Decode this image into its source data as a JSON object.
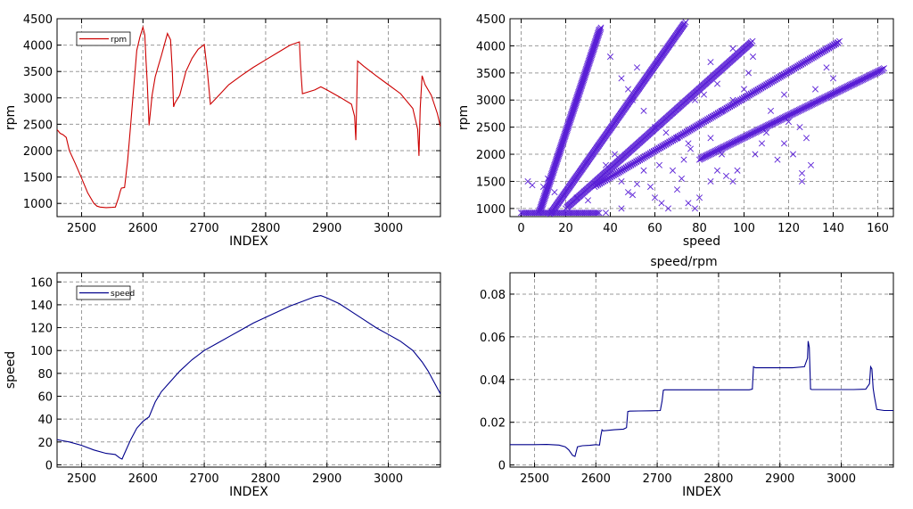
{
  "chart_data": [
    {
      "id": "rpm_index",
      "type": "line",
      "title": "",
      "xlabel": "INDEX",
      "ylabel": "rpm",
      "xlim": [
        2460,
        3085
      ],
      "ylim": [
        750,
        4500
      ],
      "xticks": [
        2500,
        2600,
        2700,
        2800,
        2900,
        3000
      ],
      "yticks": [
        1000,
        1500,
        2000,
        2500,
        3000,
        3500,
        4000,
        4500
      ],
      "grid": true,
      "legend": "top-left",
      "series": [
        {
          "name": "rpm",
          "color": "#cc0000",
          "x": [
            2460,
            2465,
            2470,
            2475,
            2480,
            2490,
            2500,
            2510,
            2520,
            2525,
            2530,
            2540,
            2550,
            2555,
            2560,
            2563,
            2565,
            2570,
            2575,
            2580,
            2585,
            2590,
            2595,
            2600,
            2603,
            2605,
            2607,
            2610,
            2615,
            2620,
            2625,
            2630,
            2640,
            2645,
            2648,
            2650,
            2652,
            2660,
            2670,
            2680,
            2690,
            2700,
            2705,
            2710,
            2720,
            2740,
            2760,
            2780,
            2800,
            2820,
            2840,
            2855,
            2857,
            2860,
            2880,
            2890,
            2900,
            2920,
            2940,
            2945,
            2947,
            2950,
            2960,
            2980,
            3000,
            3020,
            3040,
            3048,
            3050,
            3052,
            3055,
            3060,
            3070,
            3080,
            3085
          ],
          "values": [
            2400,
            2330,
            2300,
            2250,
            2000,
            1750,
            1480,
            1200,
            1000,
            950,
            930,
            920,
            925,
            930,
            1100,
            1230,
            1290,
            1300,
            1800,
            2500,
            3200,
            3900,
            4150,
            4340,
            4200,
            3700,
            3300,
            2480,
            3050,
            3400,
            3600,
            3800,
            4220,
            4100,
            3500,
            2830,
            2900,
            3050,
            3500,
            3750,
            3920,
            4010,
            3500,
            2880,
            3000,
            3250,
            3420,
            3580,
            3720,
            3860,
            4000,
            4060,
            3600,
            3080,
            3150,
            3210,
            3150,
            3020,
            2880,
            2650,
            2200,
            3700,
            3600,
            3420,
            3250,
            3080,
            2800,
            2400,
            1900,
            2800,
            3420,
            3250,
            3050,
            2700,
            2450
          ]
        }
      ]
    },
    {
      "id": "rpm_speed",
      "type": "scatter",
      "title": "",
      "xlabel": "speed",
      "ylabel": "rpm",
      "xlim": [
        -5,
        167
      ],
      "ylim": [
        850,
        4500
      ],
      "xticks": [
        0,
        20,
        40,
        60,
        80,
        100,
        120,
        140,
        160
      ],
      "yticks": [
        1000,
        1500,
        2000,
        2500,
        3000,
        3500,
        4000,
        4500
      ],
      "grid": true,
      "marker": "x",
      "series": [
        {
          "color": "#5a1fd6",
          "gear_lines": [
            {
              "x": [
                8,
                35
              ],
              "y": [
                930,
                4300
              ]
            },
            {
              "x": [
                13,
                73
              ],
              "y": [
                900,
                4400
              ]
            },
            {
              "x": [
                20,
                103
              ],
              "y": [
                1000,
                4050
              ]
            },
            {
              "x": [
                33,
                142
              ],
              "y": [
                1400,
                4050
              ]
            },
            {
              "x": [
                80,
                162
              ],
              "y": [
                1900,
                3550
              ]
            }
          ],
          "floor": {
            "x": [
              0,
              35
            ],
            "y": 920
          },
          "scattered_points": [
            [
              5,
              1430
            ],
            [
              10,
              1400
            ],
            [
              12,
              1550
            ],
            [
              3,
              1500
            ],
            [
              15,
              1300
            ],
            [
              25,
              1200
            ],
            [
              30,
              1150
            ],
            [
              38,
              1800
            ],
            [
              42,
              2000
            ],
            [
              45,
              1500
            ],
            [
              48,
              1300
            ],
            [
              50,
              1250
            ],
            [
              52,
              1450
            ],
            [
              55,
              1700
            ],
            [
              58,
              1400
            ],
            [
              60,
              1200
            ],
            [
              63,
              1100
            ],
            [
              66,
              1000
            ],
            [
              70,
              1350
            ],
            [
              72,
              1550
            ],
            [
              75,
              1100
            ],
            [
              78,
              1000
            ],
            [
              80,
              1200
            ],
            [
              85,
              1500
            ],
            [
              88,
              1700
            ],
            [
              92,
              1600
            ],
            [
              95,
              1500
            ],
            [
              60,
              2500
            ],
            [
              65,
              2400
            ],
            [
              70,
              2300
            ],
            [
              75,
              2200
            ],
            [
              55,
              2800
            ],
            [
              50,
              3000
            ],
            [
              45,
              3400
            ],
            [
              40,
              3800
            ],
            [
              52,
              3600
            ],
            [
              48,
              3200
            ],
            [
              85,
              2300
            ],
            [
              90,
              2800
            ],
            [
              95,
              3000
            ],
            [
              100,
              3200
            ],
            [
              102,
              3500
            ],
            [
              104,
              3800
            ],
            [
              110,
              2400
            ],
            [
              115,
              1900
            ],
            [
              118,
              2200
            ],
            [
              120,
              2600
            ],
            [
              125,
              2500
            ],
            [
              128,
              2300
            ],
            [
              130,
              1800
            ],
            [
              126,
              1500
            ],
            [
              126,
              1650
            ],
            [
              132,
              3200
            ],
            [
              137,
              3600
            ],
            [
              140,
              3400
            ],
            [
              97,
              1700
            ],
            [
              90,
              2000
            ],
            [
              78,
              3000
            ],
            [
              82,
              3100
            ],
            [
              88,
              3300
            ],
            [
              62,
              1800
            ],
            [
              68,
              1700
            ],
            [
              73,
              1900
            ],
            [
              76,
              2100
            ],
            [
              105,
              2000
            ],
            [
              108,
              2200
            ],
            [
              112,
              2800
            ],
            [
              118,
              3100
            ],
            [
              122,
              2000
            ],
            [
              45,
              1000
            ],
            [
              38,
              920
            ],
            [
              85,
              3700
            ],
            [
              95,
              3950
            ]
          ]
        }
      ]
    },
    {
      "id": "speed_index",
      "type": "line",
      "title": "",
      "xlabel": "INDEX",
      "ylabel": "speed",
      "xlim": [
        2460,
        3085
      ],
      "ylim": [
        -2,
        168
      ],
      "xticks": [
        2500,
        2600,
        2700,
        2800,
        2900,
        3000
      ],
      "yticks": [
        0,
        20,
        40,
        60,
        80,
        100,
        120,
        140,
        160
      ],
      "grid": true,
      "legend": "top-left",
      "series": [
        {
          "name": "speed",
          "color": "#00008b",
          "x": [
            2460,
            2470,
            2480,
            2500,
            2520,
            2540,
            2555,
            2562,
            2566,
            2570,
            2580,
            2590,
            2600,
            2610,
            2620,
            2630,
            2640,
            2660,
            2680,
            2700,
            2720,
            2740,
            2760,
            2780,
            2800,
            2820,
            2840,
            2860,
            2880,
            2890,
            2900,
            2920,
            2940,
            2960,
            2980,
            3000,
            3020,
            3040,
            3055,
            3065,
            3075,
            3085
          ],
          "values": [
            22,
            21,
            20,
            17,
            13,
            10,
            9,
            6,
            5,
            10,
            22,
            32,
            38,
            42,
            55,
            64,
            70,
            82,
            92,
            100,
            106,
            112,
            118,
            124,
            129,
            134,
            139,
            143,
            147,
            148,
            146,
            141,
            134,
            127,
            120,
            114,
            108,
            100,
            90,
            82,
            72,
            62
          ]
        }
      ]
    },
    {
      "id": "ratio_index",
      "type": "line",
      "title": "speed/rpm",
      "xlabel": "INDEX",
      "ylabel": "",
      "xlim": [
        2460,
        3085
      ],
      "ylim": [
        -0.001,
        0.09
      ],
      "xticks": [
        2500,
        2600,
        2700,
        2800,
        2900,
        3000
      ],
      "yticks": [
        0,
        0.02,
        0.04,
        0.06,
        0.08
      ],
      "ytick_labels": [
        "0",
        "0.02",
        "0.04",
        "0.06",
        "0.08"
      ],
      "grid": true,
      "series": [
        {
          "color": "#00008b",
          "x": [
            2460,
            2480,
            2500,
            2520,
            2540,
            2550,
            2556,
            2562,
            2566,
            2570,
            2578,
            2590,
            2600,
            2606,
            2608,
            2610,
            2612,
            2630,
            2645,
            2650,
            2652,
            2655,
            2670,
            2690,
            2705,
            2708,
            2710,
            2712,
            2740,
            2780,
            2820,
            2850,
            2855,
            2857,
            2860,
            2880,
            2900,
            2920,
            2940,
            2945,
            2946,
            2948,
            2950,
            2952,
            2980,
            3000,
            3020,
            3040,
            3046,
            3048,
            3050,
            3052,
            3054,
            3058,
            3070,
            3085
          ],
          "values": [
            0.0095,
            0.0095,
            0.0095,
            0.0096,
            0.0093,
            0.0085,
            0.007,
            0.0045,
            0.004,
            0.0085,
            0.009,
            0.0092,
            0.0095,
            0.0093,
            0.0135,
            0.0165,
            0.016,
            0.0165,
            0.0168,
            0.0175,
            0.025,
            0.0252,
            0.0253,
            0.0254,
            0.0255,
            0.03,
            0.035,
            0.0352,
            0.0352,
            0.0352,
            0.0352,
            0.0352,
            0.0355,
            0.046,
            0.0455,
            0.0455,
            0.0455,
            0.0455,
            0.046,
            0.05,
            0.058,
            0.055,
            0.0355,
            0.0353,
            0.0353,
            0.0353,
            0.0353,
            0.0355,
            0.038,
            0.046,
            0.045,
            0.036,
            0.032,
            0.026,
            0.0255,
            0.0255
          ]
        }
      ]
    }
  ]
}
